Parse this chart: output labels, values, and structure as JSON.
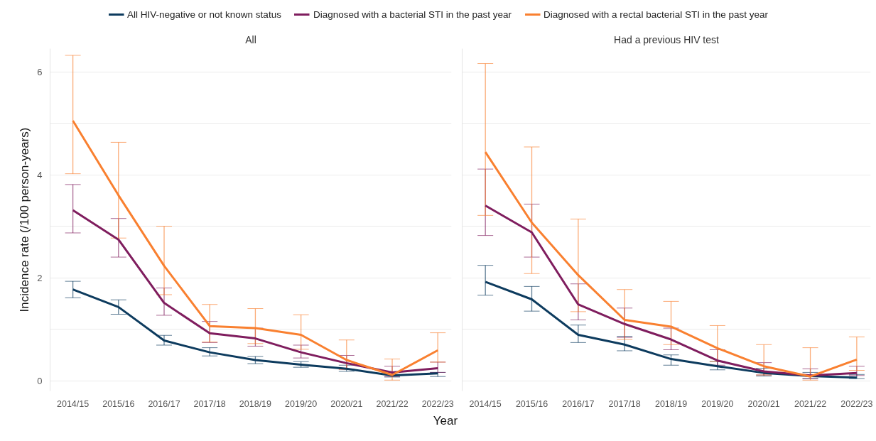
{
  "chart_data": [
    {
      "type": "line",
      "title": "All",
      "ylabel": "Incidence rate (/100 person-years)",
      "xlabel": "Year",
      "categories": [
        "2014/15",
        "2015/16",
        "2016/17",
        "2017/18",
        "2018/19",
        "2019/20",
        "2020/21",
        "2021/22",
        "2022/23"
      ],
      "ylim": [
        -0.2,
        6.45
      ],
      "yticks": [
        0,
        {
          "value": 1,
          "label": null
        },
        2,
        {
          "value": 3,
          "label": null
        },
        4,
        {
          "value": 5,
          "label": null
        },
        6
      ],
      "grid": "y",
      "legend": "top",
      "marker": "none",
      "line_style": "solid",
      "series": [
        {
          "name": "All HIV-negative or not known status",
          "color": "#0d3b5e",
          "values": [
            1.77,
            1.43,
            0.78,
            0.55,
            0.4,
            0.31,
            0.23,
            0.1,
            0.14
          ],
          "errors": [
            [
              1.61,
              1.93
            ],
            [
              1.29,
              1.57
            ],
            [
              0.69,
              0.88
            ],
            [
              0.48,
              0.64
            ],
            [
              0.33,
              0.47
            ],
            [
              0.26,
              0.37
            ],
            [
              0.18,
              0.3
            ],
            [
              0.07,
              0.12
            ],
            [
              0.08,
              0.16
            ]
          ]
        },
        {
          "name": "Diagnosed with a bacterial STI in the past year",
          "color": "#7f1d5e",
          "values": [
            3.31,
            2.74,
            1.51,
            0.92,
            0.82,
            0.55,
            0.34,
            0.16,
            0.24
          ],
          "errors": [
            [
              2.87,
              3.81
            ],
            [
              2.4,
              3.15
            ],
            [
              1.27,
              1.8
            ],
            [
              0.74,
              1.15
            ],
            [
              0.67,
              1.02
            ],
            [
              0.44,
              0.69
            ],
            [
              0.22,
              0.49
            ],
            [
              0.08,
              0.28
            ],
            [
              0.16,
              0.36
            ]
          ]
        },
        {
          "name": "Diagnosed with a rectal bacterial STI in the past year",
          "color": "#f98030",
          "values": [
            5.05,
            3.6,
            2.23,
            1.06,
            1.02,
            0.89,
            0.4,
            0.11,
            0.59
          ],
          "errors": [
            [
              4.02,
              6.32
            ],
            [
              2.77,
              4.63
            ],
            [
              1.67,
              3.0
            ],
            [
              0.75,
              1.48
            ],
            [
              0.72,
              1.4
            ],
            [
              0.61,
              1.28
            ],
            [
              0.22,
              0.79
            ],
            [
              0.01,
              0.42
            ],
            [
              0.36,
              0.93
            ]
          ]
        }
      ]
    },
    {
      "type": "line",
      "title": "Had a previous HIV test",
      "categories": [
        "2014/15",
        "2015/16",
        "2016/17",
        "2017/18",
        "2018/19",
        "2019/20",
        "2020/21",
        "2021/22",
        "2022/23"
      ],
      "ylim": [
        -0.2,
        6.45
      ],
      "yticks": [
        0,
        {
          "value": 1,
          "label": null
        },
        2,
        {
          "value": 3,
          "label": null
        },
        4,
        {
          "value": 5,
          "label": null
        },
        6
      ],
      "grid": "y",
      "tick_labels": "x",
      "marker": "none",
      "line_style": "solid",
      "series": [
        {
          "color": "#0d3b5e",
          "values": [
            1.92,
            1.58,
            0.89,
            0.7,
            0.42,
            0.28,
            0.15,
            0.09,
            0.06
          ],
          "errors": [
            [
              1.66,
              2.24
            ],
            [
              1.35,
              1.83
            ],
            [
              0.74,
              1.08
            ],
            [
              0.58,
              0.86
            ],
            [
              0.3,
              0.5
            ],
            [
              0.21,
              0.37
            ],
            [
              0.09,
              0.24
            ],
            [
              0.04,
              0.16
            ],
            [
              0.04,
              0.12
            ]
          ]
        },
        {
          "color": "#7f1d5e",
          "values": [
            3.4,
            2.88,
            1.48,
            1.1,
            0.8,
            0.39,
            0.18,
            0.1,
            0.15
          ],
          "errors": [
            [
              2.82,
              4.11
            ],
            [
              2.4,
              3.43
            ],
            [
              1.18,
              1.88
            ],
            [
              0.84,
              1.41
            ],
            [
              0.6,
              1.02
            ],
            [
              0.3,
              0.6
            ],
            [
              0.11,
              0.35
            ],
            [
              0.04,
              0.23
            ],
            [
              0.1,
              0.28
            ]
          ]
        },
        {
          "color": "#f98030",
          "values": [
            4.44,
            3.07,
            2.05,
            1.18,
            1.05,
            0.63,
            0.28,
            0.08,
            0.41
          ],
          "errors": [
            [
              3.21,
              6.16
            ],
            [
              2.08,
              4.54
            ],
            [
              1.34,
              3.14
            ],
            [
              0.8,
              1.77
            ],
            [
              0.7,
              1.54
            ],
            [
              0.37,
              1.07
            ],
            [
              0.11,
              0.7
            ],
            [
              0.01,
              0.64
            ],
            [
              0.2,
              0.85
            ]
          ]
        }
      ]
    }
  ]
}
